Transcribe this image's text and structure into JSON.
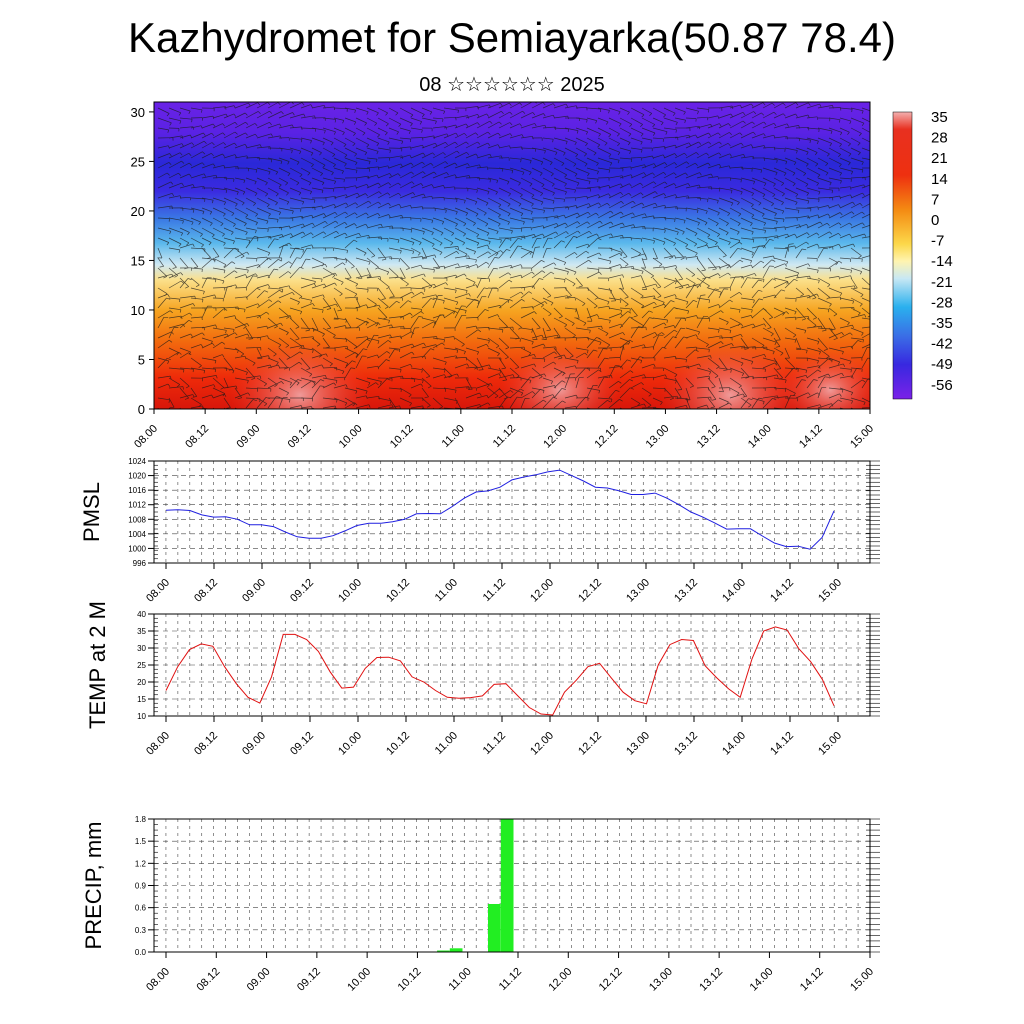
{
  "page": {
    "title": "Kazhydromet for Semiayarka(50.87 78.4)",
    "subtitle": "08 ☆☆☆☆☆☆ 2025"
  },
  "colors": {
    "pmsl_line": "#1f1fe0",
    "temp_line": "#e01010",
    "precip_bar": "#22ee22",
    "wind_barb": "#1a1a1a"
  },
  "chart_data": [
    {
      "type": "heatmap",
      "name": "cross-section",
      "y_range": [
        0,
        31
      ],
      "y_ticks": [
        0,
        5,
        10,
        15,
        20,
        25,
        30
      ],
      "x_tick_labels": [
        "08.00",
        "08.12",
        "09.00",
        "09.12",
        "10.00",
        "10.12",
        "11.00",
        "11.12",
        "12.00",
        "12.12",
        "13.00",
        "13.12",
        "14.00",
        "14.12",
        "15.00"
      ],
      "colorbar_labels": [
        "35",
        "28",
        "21",
        "14",
        "7",
        "0",
        "-7",
        "-14",
        "-21",
        "-28",
        "-35",
        "-42",
        "-49",
        "-56"
      ],
      "value_range": [
        -60,
        38
      ],
      "overlay": "wind barbs"
    },
    {
      "type": "line",
      "ylabel": "PMSL",
      "ylim": [
        996,
        1024
      ],
      "y_ticks": [
        996,
        1000,
        1004,
        1008,
        1012,
        1016,
        1020,
        1024
      ],
      "x_tick_labels": [
        "08.00",
        "08.12",
        "09.00",
        "09.12",
        "10.00",
        "10.12",
        "11.00",
        "11.12",
        "12.00",
        "12.12",
        "13.00",
        "13.12",
        "14.00",
        "14.12",
        "15.00"
      ],
      "values": [
        1010.5,
        1010.6,
        1010.4,
        1009.2,
        1008.6,
        1008.7,
        1008.0,
        1006.5,
        1006.5,
        1006.0,
        1004.5,
        1003.2,
        1002.8,
        1002.8,
        1003.5,
        1004.8,
        1006.3,
        1006.9,
        1006.9,
        1007.3,
        1008.0,
        1009.5,
        1009.6,
        1009.5,
        1011.5,
        1013.8,
        1015.5,
        1015.8,
        1016.8,
        1018.8,
        1019.6,
        1020.2,
        1021.0,
        1021.5,
        1020.0,
        1018.5,
        1016.8,
        1016.6,
        1015.8,
        1014.8,
        1014.8,
        1015.2,
        1013.8,
        1012.0,
        1010.0,
        1008.6,
        1007.0,
        1005.3,
        1005.4,
        1005.4,
        1003.4,
        1001.5,
        1000.5,
        1000.6,
        999.8,
        1003.0,
        1010.3
      ]
    },
    {
      "type": "line",
      "ylabel": "TEMP at 2 M",
      "ylim": [
        10,
        40
      ],
      "y_ticks": [
        10,
        15,
        20,
        25,
        30,
        35,
        40
      ],
      "x_tick_labels": [
        "08.00",
        "08.12",
        "09.00",
        "09.12",
        "10.00",
        "10.12",
        "11.00",
        "11.12",
        "12.00",
        "12.12",
        "13.00",
        "13.12",
        "14.00",
        "14.12",
        "15.00"
      ],
      "values": [
        17.5,
        24.5,
        29.5,
        31.2,
        30.5,
        24.5,
        19.5,
        15.5,
        13.8,
        21.5,
        34.0,
        34.0,
        32.5,
        29.0,
        23.0,
        18.2,
        18.5,
        24.0,
        27.2,
        27.3,
        26.2,
        21.5,
        20.0,
        17.5,
        15.5,
        15.2,
        15.4,
        15.9,
        19.3,
        19.5,
        16.0,
        12.5,
        10.6,
        10.3,
        17.0,
        20.5,
        24.5,
        25.5,
        21.2,
        17.0,
        14.5,
        13.6,
        25.0,
        31.0,
        32.5,
        32.2,
        24.8,
        21.2,
        18.0,
        15.5,
        26.8,
        35.0,
        36.2,
        35.3,
        29.8,
        26.0,
        20.8,
        13.0
      ]
    },
    {
      "type": "bar",
      "ylabel": "PRECIP, mm",
      "ylim": [
        0,
        1.8
      ],
      "y_ticks": [
        "0.0",
        "0.3",
        "0.6",
        "0.9",
        "1.2",
        "1.5",
        "1.8"
      ],
      "x_tick_labels": [
        "08.00",
        "08.12",
        "09.00",
        "09.12",
        "10.00",
        "10.12",
        "11.00",
        "11.12",
        "12.00",
        "12.12",
        "13.00",
        "13.12",
        "14.00",
        "14.12",
        "15.00"
      ],
      "values": [
        0,
        0,
        0,
        0,
        0,
        0,
        0,
        0,
        0,
        0,
        0,
        0,
        0,
        0,
        0,
        0,
        0,
        0,
        0,
        0,
        0,
        0,
        0.02,
        0.05,
        0,
        0,
        0.65,
        1.8,
        0,
        0,
        0,
        0,
        0,
        0,
        0,
        0,
        0,
        0,
        0,
        0,
        0,
        0,
        0,
        0,
        0,
        0,
        0,
        0,
        0,
        0,
        0,
        0,
        0,
        0,
        0,
        0
      ]
    }
  ]
}
